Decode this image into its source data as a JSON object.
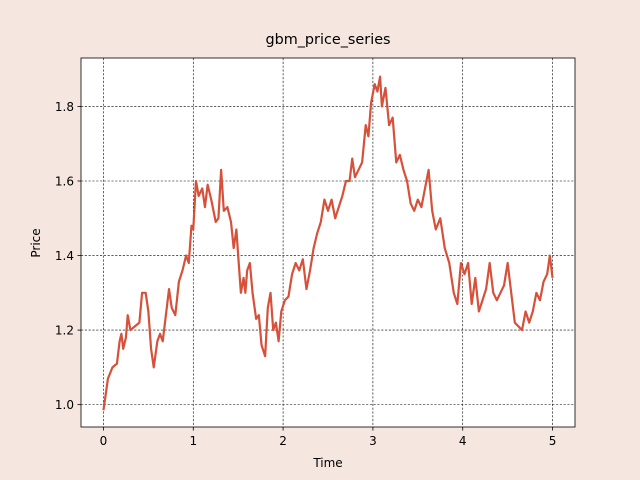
{
  "chart_data": {
    "type": "line",
    "title": "gbm_price_series",
    "xlabel": "Time",
    "ylabel": "Price",
    "color": "#d6503a",
    "grid": true,
    "xlim": [
      -0.25,
      5.25
    ],
    "ylim": [
      0.94,
      1.93
    ],
    "xticks": [
      0,
      1,
      2,
      3,
      4,
      5
    ],
    "yticks": [
      {
        "value": 1,
        "label": "1.0"
      },
      {
        "value": 1.2,
        "label": "1.2"
      },
      {
        "value": 1.4,
        "label": "1.4"
      },
      {
        "value": 1.6,
        "label": "1.6"
      },
      {
        "value": 1.8,
        "label": "1.8"
      }
    ],
    "x": [
      0,
      0.05,
      0.1,
      0.15,
      0.18,
      0.2,
      0.22,
      0.25,
      0.27,
      0.3,
      0.35,
      0.4,
      0.43,
      0.47,
      0.5,
      0.53,
      0.56,
      0.6,
      0.63,
      0.66,
      0.7,
      0.73,
      0.76,
      0.8,
      0.84,
      0.88,
      0.92,
      0.95,
      0.98,
      1.0,
      1.03,
      1.06,
      1.1,
      1.13,
      1.16,
      1.2,
      1.25,
      1.28,
      1.31,
      1.34,
      1.38,
      1.42,
      1.45,
      1.48,
      1.5,
      1.53,
      1.56,
      1.58,
      1.6,
      1.63,
      1.66,
      1.7,
      1.73,
      1.76,
      1.8,
      1.83,
      1.86,
      1.89,
      1.92,
      1.95,
      1.98,
      2.02,
      2.06,
      2.1,
      2.14,
      2.18,
      2.22,
      2.26,
      2.3,
      2.34,
      2.38,
      2.42,
      2.46,
      2.5,
      2.54,
      2.58,
      2.62,
      2.66,
      2.7,
      2.74,
      2.77,
      2.8,
      2.84,
      2.88,
      2.92,
      2.95,
      2.98,
      3.02,
      3.05,
      3.08,
      3.1,
      3.14,
      3.18,
      3.22,
      3.26,
      3.3,
      3.34,
      3.38,
      3.42,
      3.46,
      3.5,
      3.54,
      3.58,
      3.62,
      3.66,
      3.7,
      3.75,
      3.8,
      3.85,
      3.9,
      3.94,
      3.98,
      4.02,
      4.06,
      4.1,
      4.14,
      4.18,
      4.22,
      4.26,
      4.3,
      4.34,
      4.38,
      4.42,
      4.46,
      4.5,
      4.54,
      4.58,
      4.62,
      4.66,
      4.7,
      4.74,
      4.78,
      4.82,
      4.86,
      4.9,
      4.94,
      4.97,
      5.0
    ],
    "values": [
      0.985,
      1.07,
      1.1,
      1.11,
      1.17,
      1.19,
      1.15,
      1.18,
      1.24,
      1.2,
      1.21,
      1.22,
      1.3,
      1.3,
      1.25,
      1.15,
      1.1,
      1.17,
      1.19,
      1.17,
      1.25,
      1.31,
      1.26,
      1.24,
      1.33,
      1.36,
      1.4,
      1.38,
      1.48,
      1.47,
      1.6,
      1.56,
      1.58,
      1.53,
      1.59,
      1.55,
      1.49,
      1.5,
      1.63,
      1.52,
      1.53,
      1.49,
      1.42,
      1.47,
      1.4,
      1.3,
      1.34,
      1.3,
      1.36,
      1.38,
      1.3,
      1.23,
      1.24,
      1.16,
      1.13,
      1.26,
      1.3,
      1.2,
      1.22,
      1.17,
      1.25,
      1.28,
      1.29,
      1.35,
      1.38,
      1.36,
      1.39,
      1.31,
      1.36,
      1.42,
      1.46,
      1.49,
      1.55,
      1.52,
      1.55,
      1.5,
      1.53,
      1.56,
      1.6,
      1.6,
      1.66,
      1.61,
      1.63,
      1.65,
      1.75,
      1.72,
      1.81,
      1.86,
      1.84,
      1.88,
      1.8,
      1.85,
      1.75,
      1.77,
      1.65,
      1.67,
      1.63,
      1.6,
      1.54,
      1.52,
      1.55,
      1.53,
      1.58,
      1.63,
      1.52,
      1.47,
      1.5,
      1.42,
      1.38,
      1.3,
      1.27,
      1.38,
      1.35,
      1.38,
      1.27,
      1.34,
      1.25,
      1.28,
      1.31,
      1.38,
      1.3,
      1.28,
      1.3,
      1.32,
      1.38,
      1.3,
      1.22,
      1.21,
      1.2,
      1.25,
      1.22,
      1.25,
      1.3,
      1.28,
      1.33,
      1.35,
      1.4,
      1.34
    ]
  }
}
